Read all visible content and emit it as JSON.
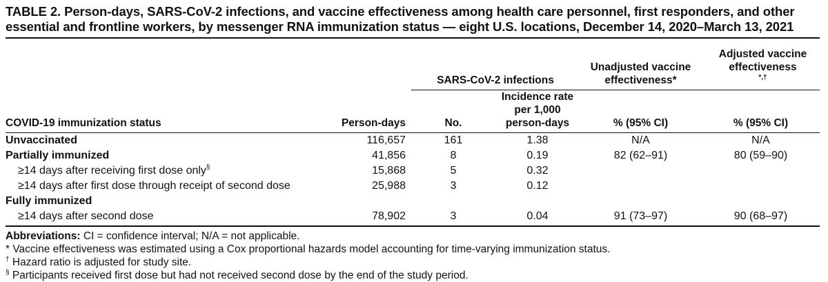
{
  "title": "TABLE 2. Person-days, SARS-CoV-2 infections, and vaccine effectiveness among health care personnel, first responders, and other essential and frontline workers, by messenger RNA immunization status — eight U.S. locations, December 14, 2020–March 13, 2021",
  "headers": {
    "infections_group": "SARS-CoV-2 infections",
    "unadjusted_group": "Unadjusted vaccine effectiveness*",
    "adjusted_group": "Adjusted vaccine effectiveness",
    "adjusted_group_marks": "*,†",
    "status": "COVID-19 immunization status",
    "person_days": "Person-days",
    "no": "No.",
    "incidence": "Incidence rate per 1,000 person-days",
    "unadj_pct": "% (95% CI)",
    "adj_pct": "% (95% CI)"
  },
  "rows": [
    {
      "label": "Unvaccinated",
      "person_days": "116,657",
      "no": "161",
      "rate": "1.38",
      "unadj": "N/A",
      "adj": "N/A"
    },
    {
      "label": "Partially immunized",
      "person_days": "41,856",
      "no": "8",
      "rate": "0.19",
      "unadj": "82 (62–91)",
      "adj": "80 (59–90)"
    },
    {
      "label": "≥14 days after receiving first dose only",
      "mark": "§",
      "person_days": "15,868",
      "no": "5",
      "rate": "0.32",
      "unadj": "",
      "adj": ""
    },
    {
      "label": "≥14 days after first dose through receipt of second dose",
      "person_days": "25,988",
      "no": "3",
      "rate": "0.12",
      "unadj": "",
      "adj": ""
    },
    {
      "label": "Fully immunized",
      "person_days": "",
      "no": "",
      "rate": "",
      "unadj": "",
      "adj": ""
    },
    {
      "label": "≥14 days after second dose",
      "person_days": "78,902",
      "no": "3",
      "rate": "0.04",
      "unadj": "91 (73–97)",
      "adj": "90 (68–97)"
    }
  ],
  "notes": {
    "abbrev_label": "Abbreviations:",
    "abbrev_text": " CI = confidence interval; N/A = not applicable.",
    "star": "* Vaccine effectiveness was estimated using a Cox proportional hazards model accounting for time-varying immunization status.",
    "dagger_mark": "†",
    "dagger_text": " Hazard ratio is adjusted for study site.",
    "section_mark": "§",
    "section_text": " Participants received first dose but had not received second dose by the end of the study period."
  }
}
